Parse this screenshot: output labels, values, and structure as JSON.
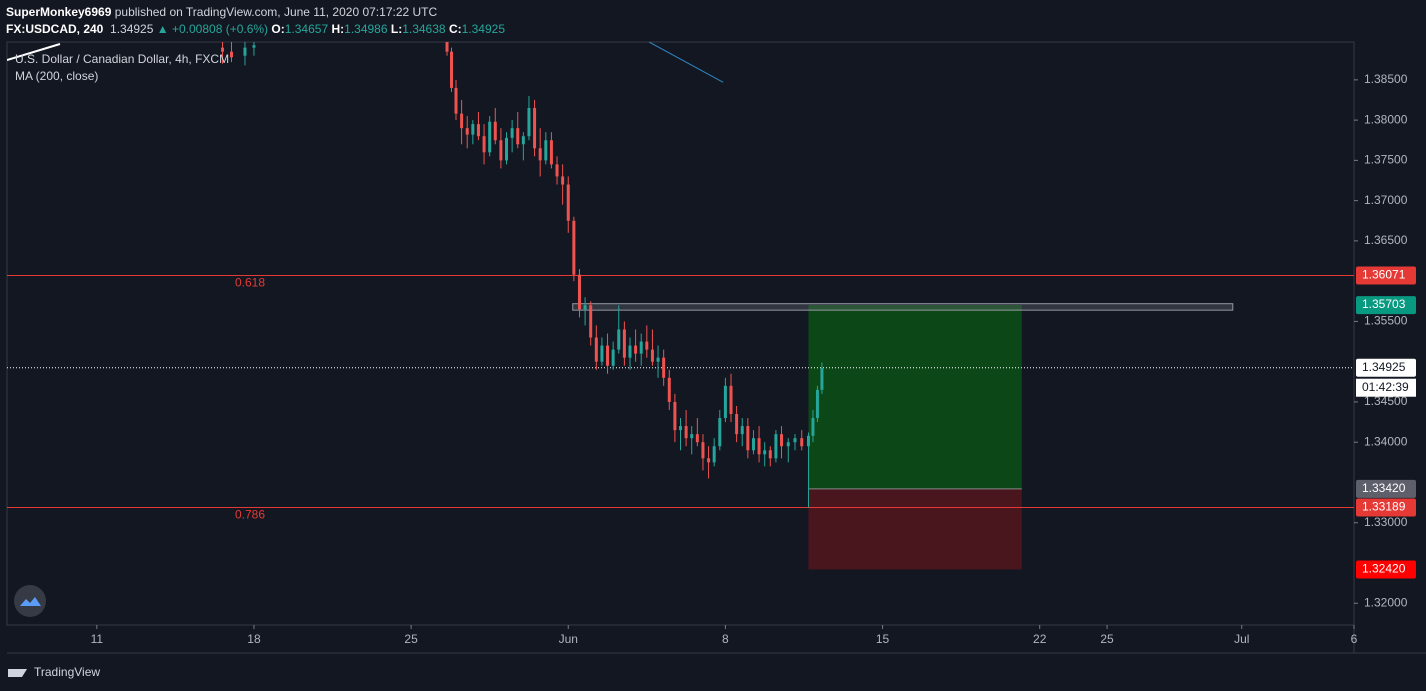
{
  "header": {
    "author": "SuperMonkey6969",
    "published": "published on TradingView.com, June 11, 2020 07:17:22 UTC",
    "symbol": "FX:USDCAD, 240",
    "last": "1.34925",
    "change": "▲ +0.00808 (+0.6%)",
    "o_label": "O:",
    "o": "1.34657",
    "h_label": "H:",
    "h": "1.34986",
    "l_label": "L:",
    "l": "1.34638",
    "c_label": "C:",
    "c": "1.34925"
  },
  "footer": {
    "brand": "TradingView"
  },
  "chart_data": {
    "type": "candlestick",
    "title": "U.S. Dollar / Canadian Dollar, 4h, FXCM",
    "up_color": "#26a69a",
    "down_color": "#ef5350",
    "xlim": [
      7,
      67
    ],
    "ylim": [
      1.3173,
      1.3897
    ],
    "xticks": [
      {
        "value": 11,
        "label": "11"
      },
      {
        "value": 18,
        "label": "18"
      },
      {
        "value": 25,
        "label": "25"
      },
      {
        "value": 32,
        "label": "Jun"
      },
      {
        "value": 39,
        "label": "8"
      },
      {
        "value": 46,
        "label": "15"
      },
      {
        "value": 53,
        "label": "22"
      },
      {
        "value": 56,
        "label": "25"
      },
      {
        "value": 62,
        "label": "Jul"
      },
      {
        "value": 67,
        "label": "6"
      }
    ],
    "yticks": [
      {
        "value": 1.32,
        "label": "1.32000"
      },
      {
        "value": 1.33,
        "label": "1.33000"
      },
      {
        "value": 1.34,
        "label": "1.34000"
      },
      {
        "value": 1.345,
        "label": "1.34500"
      },
      {
        "value": 1.355,
        "label": "1.35500"
      },
      {
        "value": 1.365,
        "label": "1.36500"
      },
      {
        "value": 1.37,
        "label": "1.37000"
      },
      {
        "value": 1.375,
        "label": "1.37500"
      },
      {
        "value": 1.38,
        "label": "1.38000"
      },
      {
        "value": 1.385,
        "label": "1.38500"
      }
    ],
    "candles": {
      "x": [
        16.6,
        17.0,
        17.6,
        18.0,
        26.6,
        26.8,
        27.0,
        27.25,
        27.5,
        27.75,
        28.0,
        28.25,
        28.5,
        28.75,
        29.0,
        29.25,
        29.5,
        29.75,
        30.0,
        30.25,
        30.5,
        30.75,
        31.0,
        31.25,
        31.5,
        31.75,
        32.0,
        32.25,
        32.5,
        32.75,
        33.0,
        33.25,
        33.5,
        33.75,
        34.0,
        34.25,
        34.5,
        34.75,
        35.0,
        35.25,
        35.5,
        35.75,
        36.0,
        36.25,
        36.5,
        36.75,
        37.0,
        37.25,
        37.5,
        37.75,
        38.0,
        38.25,
        38.5,
        38.75,
        39.0,
        39.25,
        39.5,
        39.75,
        40.0,
        40.25,
        40.5,
        40.75,
        41.0,
        41.25,
        41.5,
        41.8,
        42.1,
        42.4,
        42.7,
        42.9,
        43.1,
        43.3
      ],
      "open": [
        1.389,
        1.3885,
        1.388,
        1.389,
        1.3897,
        1.3885,
        1.384,
        1.3808,
        1.379,
        1.3782,
        1.3795,
        1.378,
        1.376,
        1.3798,
        1.3775,
        1.375,
        1.3778,
        1.379,
        1.377,
        1.378,
        1.3815,
        1.3765,
        1.375,
        1.3775,
        1.3745,
        1.373,
        1.372,
        1.3675,
        1.3608,
        1.3565,
        1.357,
        1.353,
        1.35,
        1.352,
        1.3495,
        1.3515,
        1.354,
        1.3505,
        1.352,
        1.351,
        1.3525,
        1.3515,
        1.35,
        1.3505,
        1.348,
        1.345,
        1.3415,
        1.342,
        1.3405,
        1.341,
        1.34,
        1.338,
        1.3375,
        1.3395,
        1.343,
        1.347,
        1.3435,
        1.341,
        1.342,
        1.339,
        1.3405,
        1.3385,
        1.339,
        1.338,
        1.341,
        1.3395,
        1.34,
        1.3405,
        1.3395,
        1.3408,
        1.343,
        1.3465
      ],
      "high": [
        1.3897,
        1.3897,
        1.3897,
        1.3897,
        1.3897,
        1.389,
        1.385,
        1.3825,
        1.3805,
        1.38,
        1.381,
        1.3795,
        1.3805,
        1.3815,
        1.379,
        1.3785,
        1.38,
        1.381,
        1.3785,
        1.383,
        1.3825,
        1.379,
        1.3785,
        1.3785,
        1.3755,
        1.3745,
        1.373,
        1.368,
        1.3615,
        1.358,
        1.3575,
        1.3545,
        1.353,
        1.3535,
        1.3525,
        1.357,
        1.355,
        1.353,
        1.354,
        1.3535,
        1.3545,
        1.354,
        1.352,
        1.3515,
        1.349,
        1.346,
        1.343,
        1.344,
        1.342,
        1.343,
        1.341,
        1.3395,
        1.3405,
        1.344,
        1.348,
        1.3485,
        1.3445,
        1.343,
        1.343,
        1.3415,
        1.342,
        1.34,
        1.3395,
        1.3415,
        1.342,
        1.3405,
        1.341,
        1.3415,
        1.3412,
        1.344,
        1.347,
        1.3499
      ],
      "low": [
        1.387,
        1.3872,
        1.3868,
        1.388,
        1.388,
        1.3835,
        1.38,
        1.377,
        1.3765,
        1.377,
        1.3775,
        1.3745,
        1.3755,
        1.377,
        1.374,
        1.3745,
        1.376,
        1.3765,
        1.375,
        1.3775,
        1.3755,
        1.373,
        1.3745,
        1.374,
        1.372,
        1.3695,
        1.366,
        1.36,
        1.3555,
        1.3545,
        1.352,
        1.349,
        1.3495,
        1.3485,
        1.349,
        1.351,
        1.3495,
        1.349,
        1.35,
        1.3495,
        1.3505,
        1.3495,
        1.348,
        1.347,
        1.344,
        1.34,
        1.339,
        1.3395,
        1.3385,
        1.3395,
        1.3365,
        1.3355,
        1.337,
        1.339,
        1.3425,
        1.3425,
        1.34,
        1.3395,
        1.338,
        1.3385,
        1.3375,
        1.337,
        1.337,
        1.3375,
        1.338,
        1.3375,
        1.339,
        1.339,
        1.3319,
        1.34,
        1.3425,
        1.346
      ],
      "close": [
        1.3885,
        1.3878,
        1.389,
        1.3893,
        1.3885,
        1.384,
        1.3808,
        1.379,
        1.3782,
        1.3795,
        1.378,
        1.376,
        1.3798,
        1.3775,
        1.375,
        1.3778,
        1.379,
        1.377,
        1.378,
        1.3815,
        1.3765,
        1.375,
        1.3775,
        1.3745,
        1.373,
        1.372,
        1.3675,
        1.3608,
        1.3565,
        1.357,
        1.353,
        1.35,
        1.352,
        1.3495,
        1.3515,
        1.354,
        1.3505,
        1.352,
        1.351,
        1.3525,
        1.3515,
        1.35,
        1.3505,
        1.348,
        1.345,
        1.3415,
        1.342,
        1.3405,
        1.341,
        1.34,
        1.338,
        1.3375,
        1.3395,
        1.343,
        1.347,
        1.3435,
        1.341,
        1.342,
        1.339,
        1.3405,
        1.3385,
        1.339,
        1.338,
        1.341,
        1.3395,
        1.34,
        1.3405,
        1.3395,
        1.3408,
        1.343,
        1.3465,
        1.3492
      ]
    },
    "ma": {
      "name": "MA (200, close)",
      "color": "#2e86c1",
      "x": [
        35.6,
        38.9
      ],
      "values": [
        1.3897,
        1.3847
      ]
    },
    "levels": [
      {
        "name": "0.618",
        "value": 1.36071,
        "color": "#e53935"
      },
      {
        "name": "0.786",
        "value": 1.33189,
        "color": "#e53935"
      }
    ],
    "last_price": 1.34925,
    "countdown": "01:42:39",
    "zone": {
      "x": [
        32.2,
        61.6
      ],
      "low": 1.3564,
      "high": 1.3572
    },
    "position": {
      "x": [
        42.7,
        52.2
      ],
      "target": 1.35703,
      "entry": {
        "value": 1.3342,
        "label": "1.33420"
      },
      "stop": {
        "value": 1.3242,
        "label": "1.32420"
      }
    }
  }
}
